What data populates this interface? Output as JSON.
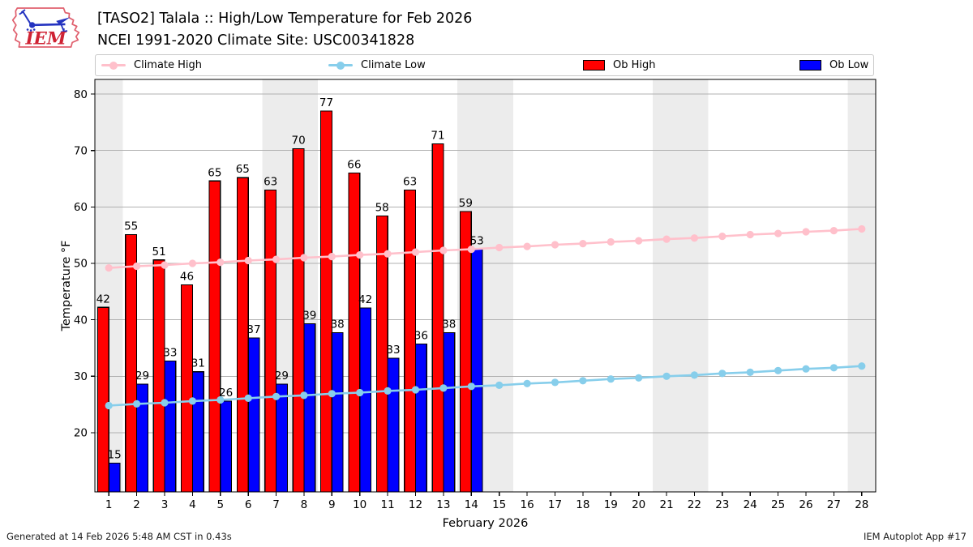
{
  "header": {
    "logo_text": "IEM",
    "title_line1": "[TASO2] Talala :: High/Low Temperature for Feb 2026",
    "title_line2": "NCEI 1991-2020 Climate Site: USC00341828"
  },
  "legend": {
    "items": [
      {
        "label": "Climate High",
        "type": "line",
        "color": "#ffc0cb"
      },
      {
        "label": "Climate Low",
        "type": "line",
        "color": "#87ceeb"
      },
      {
        "label": "Ob High",
        "type": "patch",
        "color": "#ff0000"
      },
      {
        "label": "Ob Low",
        "type": "patch",
        "color": "#0000ff"
      }
    ]
  },
  "chart_data": {
    "type": "bar",
    "title": "[TASO2] Talala :: High/Low Temperature for Feb 2026",
    "subtitle": "NCEI 1991-2020 Climate Site: USC00341828",
    "xlabel": "February 2026",
    "ylabel": "Temperature °F",
    "x": [
      1,
      2,
      3,
      4,
      5,
      6,
      7,
      8,
      9,
      10,
      11,
      12,
      13,
      14,
      15,
      16,
      17,
      18,
      19,
      20,
      21,
      22,
      23,
      24,
      25,
      26,
      27,
      28
    ],
    "xlim": [
      0.5,
      28.5
    ],
    "ylim": [
      9.5,
      82.6
    ],
    "yticks": [
      20,
      30,
      40,
      50,
      60,
      70,
      80
    ],
    "grid": true,
    "weekend_bands": [
      [
        0.5,
        1.5
      ],
      [
        6.5,
        8.5
      ],
      [
        13.5,
        15.5
      ],
      [
        20.5,
        22.5
      ],
      [
        27.5,
        28.5
      ]
    ],
    "band_color": "#ececec",
    "grid_color": "#b0b0b0",
    "series": [
      {
        "name": "Ob High",
        "type": "bar",
        "color": "#ff0000",
        "labels": [
          42,
          55,
          51,
          46,
          65,
          65,
          63,
          70,
          77,
          66,
          58,
          63,
          71,
          59
        ],
        "values": [
          42.2,
          55.1,
          50.6,
          46.2,
          64.6,
          65.2,
          63.0,
          70.3,
          77.0,
          66.0,
          58.4,
          63.0,
          71.2,
          59.2
        ]
      },
      {
        "name": "Ob Low",
        "type": "bar",
        "color": "#0000ff",
        "labels": [
          15,
          29,
          33,
          31,
          26,
          37,
          29,
          39,
          38,
          42,
          33,
          36,
          38,
          53
        ],
        "values": [
          14.6,
          28.6,
          32.7,
          30.8,
          25.6,
          36.8,
          28.6,
          39.3,
          37.7,
          42.1,
          33.2,
          35.7,
          37.7,
          52.5
        ]
      },
      {
        "name": "Climate High",
        "type": "line",
        "color": "#ffc0cb",
        "values": [
          49.2,
          49.5,
          49.7,
          50.0,
          50.2,
          50.5,
          50.7,
          51.0,
          51.2,
          51.5,
          51.7,
          52.0,
          52.3,
          52.5,
          52.8,
          53.0,
          53.3,
          53.5,
          53.8,
          54.0,
          54.3,
          54.5,
          54.8,
          55.1,
          55.3,
          55.6,
          55.8,
          56.1
        ]
      },
      {
        "name": "Climate Low",
        "type": "line",
        "color": "#87ceeb",
        "values": [
          24.8,
          25.1,
          25.3,
          25.6,
          25.8,
          26.1,
          26.4,
          26.6,
          26.9,
          27.1,
          27.4,
          27.6,
          27.9,
          28.2,
          28.4,
          28.7,
          28.9,
          29.2,
          29.5,
          29.7,
          30.0,
          30.2,
          30.5,
          30.7,
          31.0,
          31.3,
          31.5,
          31.8
        ]
      }
    ],
    "legend_position": "top"
  },
  "footer": {
    "left": "Generated at 14 Feb 2026 5:48 AM CST in 0.43s",
    "right": "IEM Autoplot App #17"
  }
}
